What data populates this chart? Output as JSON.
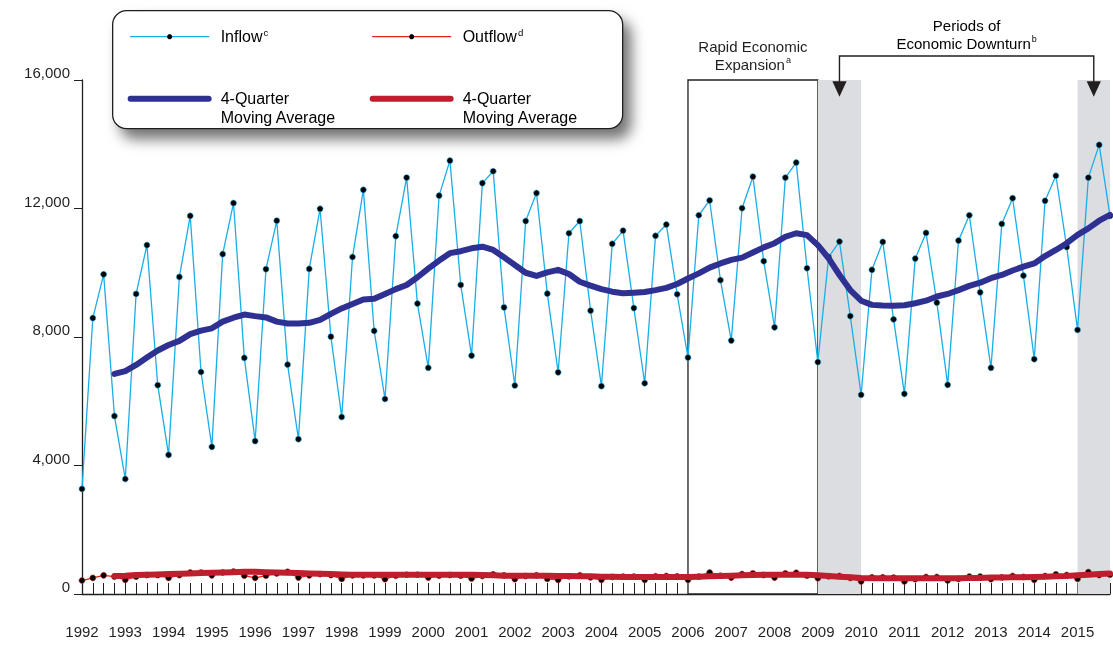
{
  "chart_data": {
    "type": "line",
    "x": [
      1992,
      1992.25,
      1992.5,
      1992.75,
      1993,
      1993.25,
      1993.5,
      1993.75,
      1994,
      1994.25,
      1994.5,
      1994.75,
      1995,
      1995.25,
      1995.5,
      1995.75,
      1996,
      1996.25,
      1996.5,
      1996.75,
      1997,
      1997.25,
      1997.5,
      1997.75,
      1998,
      1998.25,
      1998.5,
      1998.75,
      1999,
      1999.25,
      1999.5,
      1999.75,
      2000,
      2000.25,
      2000.5,
      2000.75,
      2001,
      2001.25,
      2001.5,
      2001.75,
      2002,
      2002.25,
      2002.5,
      2002.75,
      2003,
      2003.25,
      2003.5,
      2003.75,
      2004,
      2004.25,
      2004.5,
      2004.75,
      2005,
      2005.25,
      2005.5,
      2005.75,
      2006,
      2006.25,
      2006.5,
      2006.75,
      2007,
      2007.25,
      2007.5,
      2007.75,
      2008,
      2008.25,
      2008.5,
      2008.75,
      2009,
      2009.25,
      2009.5,
      2009.75,
      2010,
      2010.25,
      2010.5,
      2010.75,
      2011,
      2011.25,
      2011.5,
      2011.75,
      2012,
      2012.25,
      2012.5,
      2012.75,
      2013,
      2013.25,
      2013.5,
      2013.75,
      2014,
      2014.25,
      2014.5,
      2014.75,
      2015,
      2015.25,
      2015.5,
      2015.75
    ],
    "series": [
      {
        "name": "Inflow$^{c}$",
        "color": "#1aaee8",
        "marker": "circle",
        "values": [
          3270,
          8590,
          9950,
          5540,
          3580,
          9340,
          10860,
          6500,
          4330,
          9870,
          11770,
          6910,
          4580,
          10580,
          12170,
          7350,
          4760,
          10110,
          11620,
          7140,
          4820,
          10120,
          11990,
          8010,
          5510,
          10490,
          12580,
          8190,
          6070,
          11140,
          12960,
          9040,
          7040,
          12400,
          13490,
          9620,
          7420,
          12790,
          13160,
          8920,
          6490,
          11610,
          12480,
          9350,
          6900,
          11230,
          11610,
          8820,
          6470,
          10900,
          11310,
          8900,
          6560,
          11150,
          11500,
          9330,
          7360,
          11790,
          12250,
          9770,
          7890,
          12010,
          12990,
          10360,
          8300,
          12960,
          13430,
          10140,
          7220,
          10490,
          10970,
          8650,
          6200,
          10090,
          10960,
          8550,
          6230,
          10440,
          11240,
          9070,
          6510,
          11000,
          11790,
          9390,
          7040,
          11520,
          12320,
          9910,
          7310,
          12240,
          13020,
          10800,
          8220,
          12960,
          13980,
          11770
        ]
      },
      {
        "name": "Outflow$^{d}$",
        "color": "#e2231a",
        "marker": "circle",
        "values": [
          420,
          500,
          580,
          540,
          440,
          540,
          590,
          590,
          500,
          590,
          670,
          670,
          580,
          670,
          700,
          570,
          500,
          570,
          640,
          690,
          510,
          580,
          620,
          590,
          470,
          580,
          580,
          580,
          460,
          570,
          600,
          600,
          510,
          570,
          590,
          570,
          480,
          560,
          610,
          580,
          460,
          560,
          580,
          470,
          440,
          550,
          580,
          520,
          440,
          530,
          540,
          540,
          440,
          550,
          560,
          550,
          440,
          540,
          670,
          570,
          510,
          620,
          640,
          590,
          510,
          640,
          660,
          570,
          490,
          550,
          560,
          500,
          390,
          520,
          520,
          510,
          390,
          460,
          530,
          530,
          420,
          470,
          540,
          540,
          460,
          520,
          560,
          530,
          440,
          560,
          610,
          590,
          470,
          680,
          590,
          600
        ]
      },
      {
        "name": "4-Quarter\nMoving Average",
        "color": "#2e3192",
        "marker": "none",
        "values": [
          null,
          null,
          null,
          6850,
          6940,
          7130,
          7360,
          7580,
          7750,
          7880,
          8090,
          8200,
          8270,
          8480,
          8600,
          8700,
          8650,
          8610,
          8480,
          8420,
          8420,
          8440,
          8530,
          8720,
          8890,
          9030,
          9170,
          9190,
          9340,
          9490,
          9620,
          9860,
          10130,
          10380,
          10610,
          10670,
          10760,
          10810,
          10710,
          10480,
          10240,
          10000,
          9900,
          10010,
          10090,
          9960,
          9720,
          9600,
          9490,
          9410,
          9360,
          9380,
          9400,
          9460,
          9530,
          9650,
          9820,
          9980,
          10160,
          10290,
          10400,
          10470,
          10630,
          10790,
          10920,
          11120,
          11230,
          11170,
          10860,
          10450,
          9930,
          9460,
          9130,
          9000,
          8980,
          8970,
          8990,
          9050,
          9130,
          9260,
          9340,
          9460,
          9590,
          9690,
          9830,
          9930,
          10070,
          10190,
          10290,
          10520,
          10710,
          10920,
          11180,
          11380,
          11620,
          11800
        ]
      },
      {
        "name": "4-Quarter\nMoving Average",
        "color": "#be1e2d",
        "marker": "none",
        "values": [
          null,
          null,
          null,
          560,
          570,
          590,
          600,
          610,
          620,
          630,
          640,
          650,
          660,
          670,
          680,
          690,
          690,
          680,
          670,
          660,
          650,
          640,
          630,
          620,
          610,
          600,
          600,
          600,
          600,
          600,
          600,
          600,
          600,
          600,
          600,
          600,
          600,
          590,
          580,
          570,
          570,
          570,
          570,
          570,
          560,
          560,
          550,
          550,
          540,
          540,
          530,
          530,
          530,
          530,
          530,
          530,
          530,
          540,
          550,
          560,
          570,
          580,
          590,
          600,
          600,
          600,
          600,
          600,
          580,
          560,
          540,
          520,
          500,
          490,
          490,
          490,
          490,
          490,
          490,
          490,
          490,
          490,
          500,
          500,
          510,
          510,
          520,
          520,
          530,
          540,
          550,
          560,
          580,
          600,
          620,
          640
        ]
      }
    ],
    "xlim": [
      1992,
      2015.75
    ],
    "xticks": [
      1992,
      {
        "value": 1992.25,
        "label": null
      },
      {
        "value": 1992.5,
        "label": null
      },
      {
        "value": 1992.75,
        "label": null
      },
      1993,
      {
        "value": 1993.25,
        "label": null
      },
      {
        "value": 1993.5,
        "label": null
      },
      {
        "value": 1993.75,
        "label": null
      },
      1994,
      {
        "value": 1994.25,
        "label": null
      },
      {
        "value": 1994.5,
        "label": null
      },
      {
        "value": 1994.75,
        "label": null
      },
      1995,
      {
        "value": 1995.25,
        "label": null
      },
      {
        "value": 1995.5,
        "label": null
      },
      {
        "value": 1995.75,
        "label": null
      },
      1996,
      {
        "value": 1996.25,
        "label": null
      },
      {
        "value": 1996.5,
        "label": null
      },
      {
        "value": 1996.75,
        "label": null
      },
      1997,
      {
        "value": 1997.25,
        "label": null
      },
      {
        "value": 1997.5,
        "label": null
      },
      {
        "value": 1997.75,
        "label": null
      },
      1998,
      {
        "value": 1998.25,
        "label": null
      },
      {
        "value": 1998.5,
        "label": null
      },
      {
        "value": 1998.75,
        "label": null
      },
      1999,
      {
        "value": 1999.25,
        "label": null
      },
      {
        "value": 1999.5,
        "label": null
      },
      {
        "value": 1999.75,
        "label": null
      },
      2000,
      {
        "value": 2000.25,
        "label": null
      },
      {
        "value": 2000.5,
        "label": null
      },
      {
        "value": 2000.75,
        "label": null
      },
      2001,
      {
        "value": 2001.25,
        "label": null
      },
      {
        "value": 2001.5,
        "label": null
      },
      {
        "value": 2001.75,
        "label": null
      },
      2002,
      {
        "value": 2002.25,
        "label": null
      },
      {
        "value": 2002.5,
        "label": null
      },
      {
        "value": 2002.75,
        "label": null
      },
      2003,
      {
        "value": 2003.25,
        "label": null
      },
      {
        "value": 2003.5,
        "label": null
      },
      {
        "value": 2003.75,
        "label": null
      },
      2004,
      {
        "value": 2004.25,
        "label": null
      },
      {
        "value": 2004.5,
        "label": null
      },
      {
        "value": 2004.75,
        "label": null
      },
      2005,
      {
        "value": 2005.25,
        "label": null
      },
      {
        "value": 2005.5,
        "label": null
      },
      {
        "value": 2005.75,
        "label": null
      },
      2006,
      {
        "value": 2006.25,
        "label": null
      },
      {
        "value": 2006.5,
        "label": null
      },
      {
        "value": 2006.75,
        "label": null
      },
      2007,
      {
        "value": 2007.25,
        "label": null
      },
      {
        "value": 2007.5,
        "label": null
      },
      {
        "value": 2007.75,
        "label": null
      },
      2008,
      {
        "value": 2008.25,
        "label": null
      },
      {
        "value": 2008.5,
        "label": null
      },
      {
        "value": 2008.75,
        "label": null
      },
      2009,
      {
        "value": 2009.25,
        "label": null
      },
      {
        "value": 2009.5,
        "label": null
      },
      {
        "value": 2009.75,
        "label": null
      },
      2010,
      {
        "value": 2010.25,
        "label": null
      },
      {
        "value": 2010.5,
        "label": null
      },
      {
        "value": 2010.75,
        "label": null
      },
      2011,
      {
        "value": 2011.25,
        "label": null
      },
      {
        "value": 2011.5,
        "label": null
      },
      {
        "value": 2011.75,
        "label": null
      },
      2012,
      {
        "value": 2012.25,
        "label": null
      },
      {
        "value": 2012.5,
        "label": null
      },
      {
        "value": 2012.75,
        "label": null
      },
      2013,
      {
        "value": 2013.25,
        "label": null
      },
      {
        "value": 2013.5,
        "label": null
      },
      {
        "value": 2013.75,
        "label": null
      },
      2014,
      {
        "value": 2014.25,
        "label": null
      },
      {
        "value": 2014.5,
        "label": null
      },
      {
        "value": 2014.75,
        "label": null
      },
      2015,
      {
        "value": 2015.25,
        "label": null
      },
      {
        "value": 2015.5,
        "label": null
      },
      {
        "value": 2015.75,
        "label": null
      }
    ],
    "ylim": [
      0,
      16000
    ],
    "yticks": [
      0,
      {
        "value": 4000,
        "label": "4,000"
      },
      {
        "value": 8000,
        "label": "8,000"
      },
      {
        "value": 12000,
        "label": "12,000"
      },
      {
        "value": 16000,
        "label": "16,000"
      }
    ],
    "grid": false,
    "legend": "top left",
    "bands": [
      {
        "axis": "x",
        "from": 2006,
        "to": 2009,
        "color": "#ffffff",
        "label": "Rapid Economic\nExpansion$^{a}$"
      },
      {
        "axis": "x",
        "from": 2009,
        "to": 2010,
        "color": "#dcdde0"
      },
      {
        "axis": "x",
        "from": 2015,
        "to": 2015.75,
        "color": "#dcdde0"
      }
    ],
    "annotations": [
      "Periods of\nEconomic Downturn$^{b}$"
    ]
  }
}
